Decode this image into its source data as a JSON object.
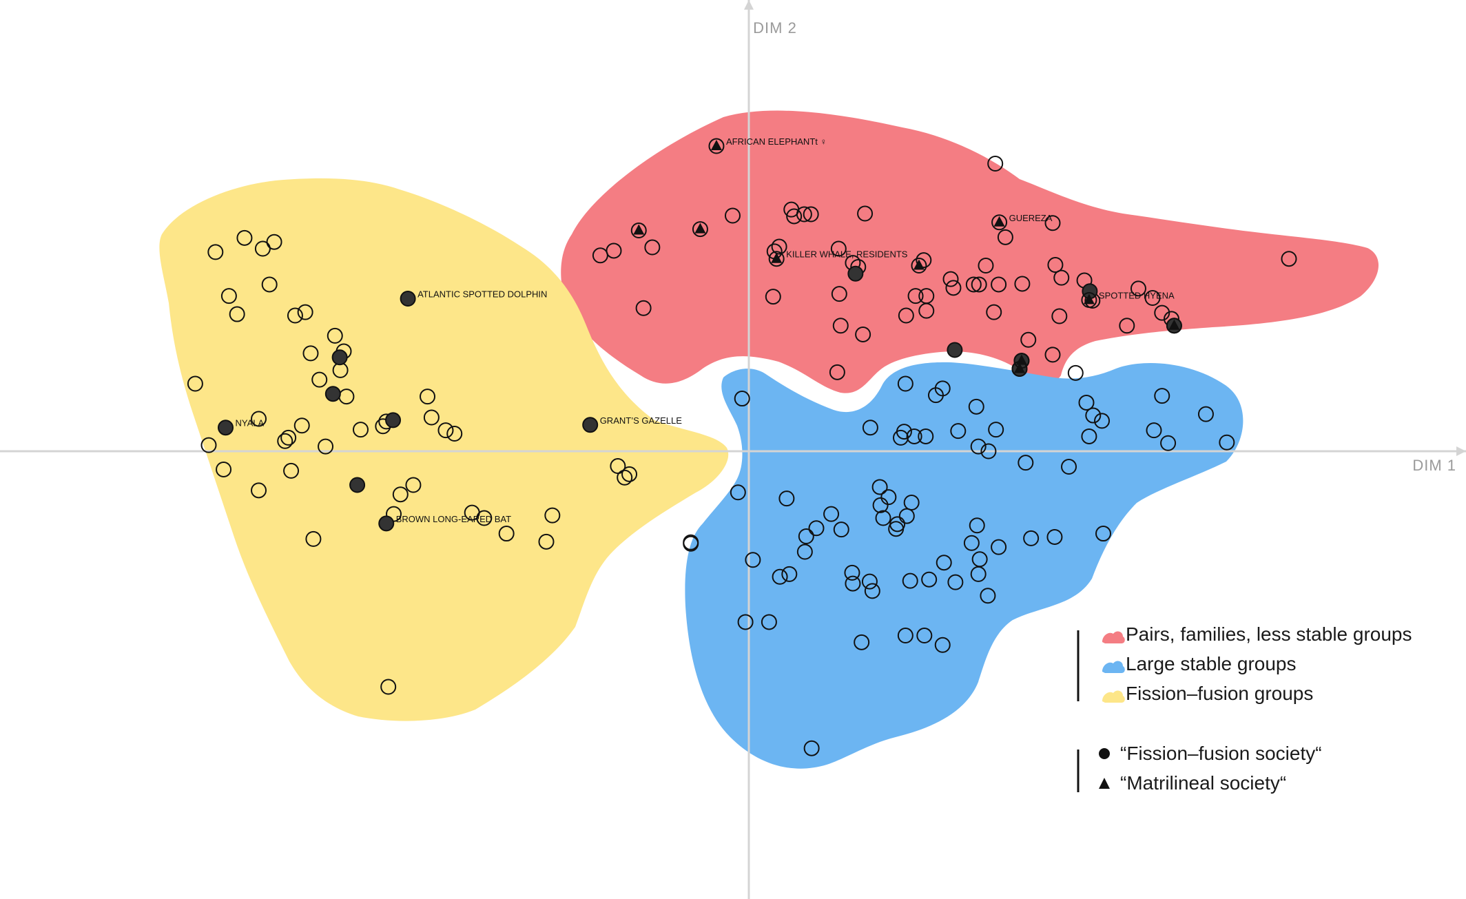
{
  "chart_data": {
    "type": "scatter",
    "xlabel": "DIM 1",
    "ylabel": "DIM 2",
    "xlim": [
      -10.8,
      10.8
    ],
    "ylim": [
      -6.6,
      6.6
    ],
    "colors": {
      "pairs": "#f47d83",
      "large": "#6cb5f2",
      "fission": "#fde689",
      "axis": "#d4d4d4",
      "marker": "#111111",
      "filled": "#333333"
    },
    "groups": [
      {
        "key": "pairs",
        "label": "Pairs, families, less stable groups",
        "color": "#f47d83"
      },
      {
        "key": "large",
        "label": "Large stable groups",
        "color": "#6cb5f2"
      },
      {
        "key": "fission",
        "label": "Fission–fusion groups",
        "color": "#fde689"
      }
    ],
    "marker_legend": [
      {
        "shape": "circle",
        "label": "“Fission–fusion society“"
      },
      {
        "shape": "triangle",
        "label": "“Matrilineal society“"
      }
    ],
    "labeled_points": [
      {
        "label": "AFRICAN ELEPHANTt ♀",
        "x": -0.48,
        "y": 4.52,
        "group": "pairs"
      },
      {
        "label": "GUEREZA",
        "x": 3.71,
        "y": 3.39,
        "group": "pairs"
      },
      {
        "label": "KILLER WHALE, RESIDENTS",
        "x": 0.41,
        "y": 2.85,
        "group": "pairs"
      },
      {
        "label": "SPOTTED HYENA",
        "x": 5.04,
        "y": 2.24,
        "group": "pairs"
      },
      {
        "label": "ATLANTIC SPOTTED DOLPHIN",
        "x": -5.05,
        "y": 2.26,
        "group": "fission"
      },
      {
        "label": "NYALA",
        "x": -7.75,
        "y": 0.35,
        "group": "fission"
      },
      {
        "label": "GRANT’S GAZELLE",
        "x": -2.35,
        "y": 0.39,
        "group": "fission"
      },
      {
        "label": "BROWN LONG-EARED BAT",
        "x": -5.37,
        "y": -1.07,
        "group": "fission"
      }
    ],
    "points": {
      "pairs": {
        "open": [
          [
            -2.2,
            2.9
          ],
          [
            -2.0,
            2.97
          ],
          [
            -1.56,
            2.12
          ],
          [
            -0.24,
            3.49
          ],
          [
            0.38,
            2.96
          ],
          [
            0.45,
            3.03
          ],
          [
            0.63,
            3.58
          ],
          [
            0.67,
            3.48
          ],
          [
            0.92,
            3.51
          ],
          [
            1.33,
            3.0
          ],
          [
            1.62,
            2.73
          ],
          [
            1.72,
            3.52
          ],
          [
            2.59,
            2.83
          ],
          [
            2.63,
            2.3
          ],
          [
            2.47,
            2.3
          ],
          [
            2.99,
            2.55
          ],
          [
            3.03,
            2.42
          ],
          [
            2.33,
            2.01
          ],
          [
            2.63,
            2.08
          ],
          [
            3.65,
            4.26
          ],
          [
            3.7,
            2.47
          ],
          [
            3.63,
            2.06
          ],
          [
            3.8,
            3.17
          ],
          [
            4.05,
            2.48
          ],
          [
            3.51,
            2.75
          ],
          [
            4.5,
            3.38
          ],
          [
            4.14,
            1.65
          ],
          [
            4.5,
            1.43
          ],
          [
            4.6,
            2.0
          ],
          [
            4.54,
            2.76
          ],
          [
            4.63,
            2.57
          ],
          [
            5.09,
            2.23
          ],
          [
            5.6,
            1.86
          ],
          [
            5.77,
            2.41
          ],
          [
            5.98,
            2.27
          ],
          [
            6.12,
            2.05
          ],
          [
            6.26,
            1.96
          ],
          [
            4.84,
            1.16
          ],
          [
            3.41,
            2.47
          ],
          [
            3.33,
            2.47
          ],
          [
            2.87,
            0.93
          ],
          [
            4.97,
            2.53
          ],
          [
            8.0,
            2.85
          ],
          [
            -1.43,
            3.02
          ],
          [
            0.36,
            2.29
          ],
          [
            1.34,
            2.33
          ],
          [
            1.36,
            1.86
          ],
          [
            1.69,
            1.73
          ],
          [
            0.82,
            3.51
          ],
          [
            1.54,
            2.79
          ],
          [
            1.31,
            1.17
          ]
        ],
        "filled": [
          [
            1.58,
            2.63
          ],
          [
            3.05,
            1.5
          ],
          [
            5.05,
            2.37
          ],
          [
            6.3,
            1.86
          ],
          [
            4.04,
            1.34
          ],
          [
            4.01,
            1.22
          ]
        ],
        "triangles": [
          [
            -0.48,
            4.52
          ],
          [
            -1.63,
            3.27
          ],
          [
            -0.72,
            3.29
          ],
          [
            0.41,
            2.85
          ],
          [
            2.52,
            2.75
          ],
          [
            3.71,
            3.39
          ],
          [
            5.04,
            2.24
          ],
          [
            4.04,
            1.34
          ],
          [
            4.01,
            1.22
          ],
          [
            6.3,
            1.86
          ]
        ]
      },
      "large": {
        "open": [
          [
            -0.1,
            0.78
          ],
          [
            2.32,
            1.0
          ],
          [
            2.77,
            0.83
          ],
          [
            3.37,
            0.66
          ],
          [
            1.8,
            0.35
          ],
          [
            2.25,
            0.2
          ],
          [
            2.3,
            0.29
          ],
          [
            2.45,
            0.22
          ],
          [
            2.62,
            0.22
          ],
          [
            3.1,
            0.3
          ],
          [
            3.66,
            0.32
          ],
          [
            3.4,
            0.07
          ],
          [
            3.55,
            0.0
          ],
          [
            4.1,
            -0.17
          ],
          [
            4.74,
            -0.23
          ],
          [
            5.0,
            0.72
          ],
          [
            5.1,
            0.53
          ],
          [
            5.23,
            0.45
          ],
          [
            5.04,
            0.22
          ],
          [
            6.12,
            0.82
          ],
          [
            6.0,
            0.31
          ],
          [
            6.21,
            0.12
          ],
          [
            6.77,
            0.55
          ],
          [
            7.08,
            0.13
          ],
          [
            1.22,
            -0.93
          ],
          [
            1.0,
            -1.14
          ],
          [
            0.56,
            -0.7
          ],
          [
            0.85,
            -1.26
          ],
          [
            0.83,
            -1.49
          ],
          [
            0.6,
            -1.82
          ],
          [
            0.46,
            -1.86
          ],
          [
            0.06,
            -1.61
          ],
          [
            1.94,
            -0.53
          ],
          [
            1.95,
            -0.8
          ],
          [
            2.07,
            -0.68
          ],
          [
            2.41,
            -0.76
          ],
          [
            1.99,
            -0.99
          ],
          [
            2.34,
            -0.96
          ],
          [
            1.37,
            -1.16
          ],
          [
            2.2,
            -1.08
          ],
          [
            2.18,
            -1.15
          ],
          [
            3.38,
            -1.1
          ],
          [
            3.3,
            -1.36
          ],
          [
            3.42,
            -1.6
          ],
          [
            3.06,
            -1.94
          ],
          [
            3.4,
            -1.82
          ],
          [
            2.89,
            -1.65
          ],
          [
            2.39,
            -1.92
          ],
          [
            1.79,
            -1.93
          ],
          [
            1.83,
            -2.07
          ],
          [
            1.53,
            -1.8
          ],
          [
            1.54,
            -1.96
          ],
          [
            -0.86,
            -1.35
          ],
          [
            -0.86,
            -1.37
          ],
          [
            -0.16,
            -0.61
          ],
          [
            -0.05,
            -2.53
          ],
          [
            0.3,
            -2.53
          ],
          [
            1.67,
            -2.83
          ],
          [
            2.32,
            -2.73
          ],
          [
            2.6,
            -2.73
          ],
          [
            2.87,
            -2.87
          ],
          [
            0.93,
            -4.4
          ],
          [
            3.7,
            -1.42
          ],
          [
            4.18,
            -1.29
          ],
          [
            4.53,
            -1.27
          ],
          [
            5.25,
            -1.22
          ],
          [
            3.54,
            -2.14
          ],
          [
            2.67,
            -1.9
          ]
        ],
        "filled": [],
        "triangles": []
      },
      "fission": {
        "open": [
          [
            -7.9,
            2.95
          ],
          [
            -7.2,
            3.0
          ],
          [
            -7.03,
            3.1
          ],
          [
            -7.47,
            3.16
          ],
          [
            -7.7,
            2.3
          ],
          [
            -7.58,
            2.03
          ],
          [
            -6.72,
            2.01
          ],
          [
            -7.1,
            2.47
          ],
          [
            -6.49,
            1.45
          ],
          [
            -6.57,
            2.06
          ],
          [
            -6.13,
            1.71
          ],
          [
            -6.0,
            1.48
          ],
          [
            -6.05,
            1.2
          ],
          [
            -5.96,
            0.81
          ],
          [
            -5.42,
            0.37
          ],
          [
            -5.75,
            0.32
          ],
          [
            -6.87,
            0.15
          ],
          [
            -7.26,
            0.48
          ],
          [
            -6.82,
            0.2
          ],
          [
            -6.62,
            0.38
          ],
          [
            -6.27,
            0.07
          ],
          [
            -8.2,
            1.0
          ],
          [
            -8.0,
            0.09
          ],
          [
            -7.78,
            -0.27
          ],
          [
            -7.26,
            -0.58
          ],
          [
            -6.78,
            -0.29
          ],
          [
            -5.37,
            0.44
          ],
          [
            -4.76,
            0.81
          ],
          [
            -4.7,
            0.5
          ],
          [
            -4.49,
            0.31
          ],
          [
            -4.36,
            0.26
          ],
          [
            -4.97,
            -0.5
          ],
          [
            -5.26,
            -0.93
          ],
          [
            -4.1,
            -0.91
          ],
          [
            -3.59,
            -1.22
          ],
          [
            -3.0,
            -1.34
          ],
          [
            -2.91,
            -0.95
          ],
          [
            -1.84,
            -0.39
          ],
          [
            -1.94,
            -0.22
          ],
          [
            -1.77,
            -0.34
          ],
          [
            -3.92,
            -0.99
          ],
          [
            -6.45,
            -1.3
          ],
          [
            -5.34,
            -3.49
          ],
          [
            -5.16,
            -0.64
          ],
          [
            -6.36,
            1.06
          ]
        ],
        "filled": [
          [
            -5.05,
            2.26
          ],
          [
            -6.06,
            1.39
          ],
          [
            -7.75,
            0.35
          ],
          [
            -2.35,
            0.39
          ],
          [
            -5.37,
            -1.07
          ],
          [
            -6.16,
            0.85
          ],
          [
            -5.27,
            0.46
          ],
          [
            -5.8,
            -0.5
          ]
        ],
        "triangles": []
      }
    }
  }
}
